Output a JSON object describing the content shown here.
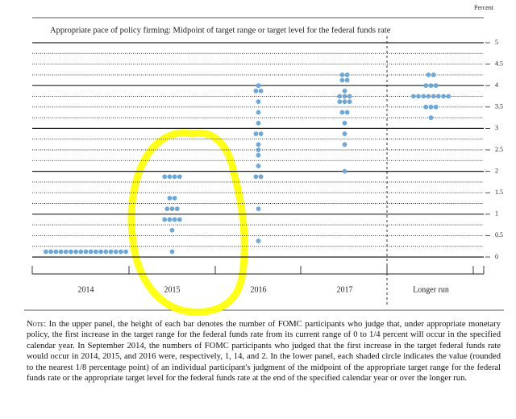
{
  "chart_data": {
    "type": "dotplot",
    "unit_label": "Percent",
    "title": "Appropriate pace of policy firming: Midpoint of target range or target level for the federal funds rate",
    "categories": [
      "2014",
      "2015",
      "2016",
      "2017",
      "Longer run"
    ],
    "dots": [
      [
        {
          "y": 0.125,
          "n": 17
        }
      ],
      [
        {
          "y": 0.125,
          "n": 1
        },
        {
          "y": 0.625,
          "n": 1
        },
        {
          "y": 0.875,
          "n": 4
        },
        {
          "y": 1.125,
          "n": 3
        },
        {
          "y": 1.375,
          "n": 2
        },
        {
          "y": 1.875,
          "n": 4
        }
      ],
      [
        {
          "y": 0.375,
          "n": 1
        },
        {
          "y": 1.125,
          "n": 1
        },
        {
          "y": 1.875,
          "n": 2
        },
        {
          "y": 2.125,
          "n": 1
        },
        {
          "y": 2.375,
          "n": 1
        },
        {
          "y": 2.5,
          "n": 1
        },
        {
          "y": 2.625,
          "n": 1
        },
        {
          "y": 2.875,
          "n": 2
        },
        {
          "y": 3.125,
          "n": 1
        },
        {
          "y": 3.375,
          "n": 1
        },
        {
          "y": 3.625,
          "n": 1
        },
        {
          "y": 3.875,
          "n": 2
        },
        {
          "y": 4.0,
          "n": 1
        }
      ],
      [
        {
          "y": 2.0,
          "n": 1
        },
        {
          "y": 2.625,
          "n": 1
        },
        {
          "y": 2.875,
          "n": 1
        },
        {
          "y": 3.125,
          "n": 1
        },
        {
          "y": 3.375,
          "n": 2
        },
        {
          "y": 3.625,
          "n": 3
        },
        {
          "y": 3.75,
          "n": 3
        },
        {
          "y": 3.875,
          "n": 1
        },
        {
          "y": 4.125,
          "n": 2
        },
        {
          "y": 4.25,
          "n": 2
        }
      ],
      [
        {
          "y": 3.25,
          "n": 1
        },
        {
          "y": 3.5,
          "n": 3
        },
        {
          "y": 3.75,
          "n": 8
        },
        {
          "y": 4.0,
          "n": 3
        },
        {
          "y": 4.25,
          "n": 2
        }
      ]
    ],
    "color": "#6fa8d6",
    "ylim": [
      0,
      5
    ],
    "yticks": [
      0,
      0.5,
      1,
      1.5,
      2,
      2.5,
      3,
      3.5,
      4,
      4.5,
      5
    ],
    "minor_yticks": [
      0.25,
      0.75,
      1.25,
      1.75,
      2.25,
      2.75,
      3.25,
      3.75,
      4.25,
      4.75
    ],
    "grid": true,
    "note_lead": "Note:",
    "note": "In the upper panel, the height of each bar denotes the number of FOMC participants who judge that, under appropriate monetary policy, the first increase in the target range for the federal funds rate from its current range of 0 to 1/4 percent will occur in the specified calendar year. In September 2014, the numbers of FOMC participants who judged that the first increase in the target federal funds rate would occur in 2014, 2015, and 2016 were, respectively, 1, 14, and 2. In the lower panel, each shaded circle indicates the value (rounded to the nearest 1/8 percentage point) of an individual participant's judgment of the midpoint of the appropriate target range for the federal funds rate or the appropriate target level for the federal funds rate at the end of the specified calendar year or over the longer run."
  }
}
